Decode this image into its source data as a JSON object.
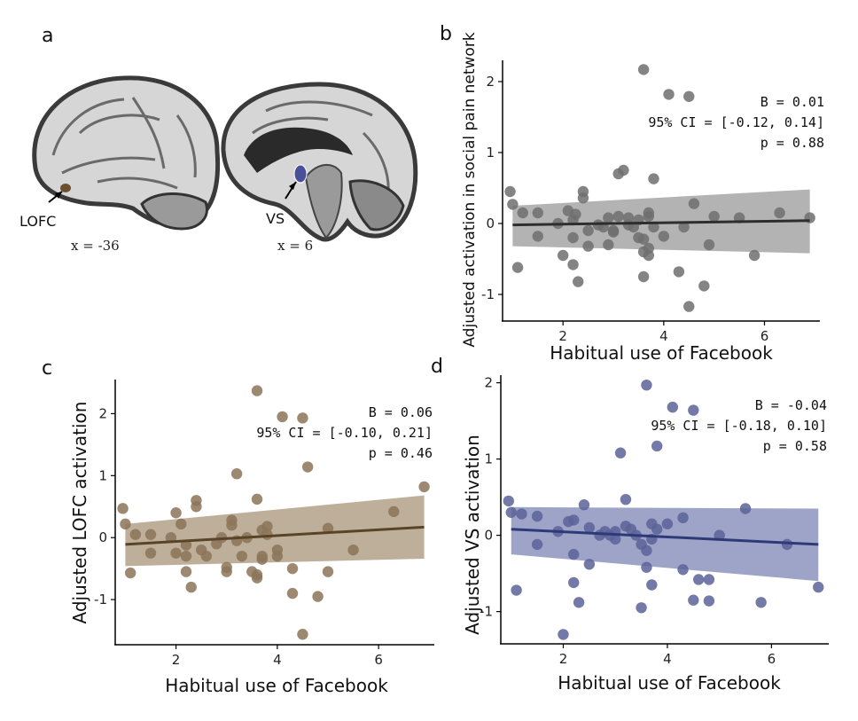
{
  "panels": {
    "a": "a",
    "b": "b",
    "c": "c",
    "d": "d"
  },
  "brain": {
    "left_label": "LOFC",
    "right_label": "VS",
    "left_coord": "x = -36",
    "right_coord": "x = 6",
    "left_roi_color": "#6b4f2e",
    "right_roi_color": "#4a4f9a"
  },
  "chart_data": [
    {
      "id": "b",
      "type": "scatter",
      "xlabel": "Habitual use of Facebook",
      "ylabel": "Adjusted activation in social pain network",
      "xlim": [
        0.8,
        7.1
      ],
      "ylim": [
        -1.35,
        2.3
      ],
      "xticks": [
        2,
        4,
        6
      ],
      "yticks": [
        -1,
        0,
        1,
        2
      ],
      "color": "#6e6e6e",
      "band_color": "#9a9a9a",
      "line_color": "#2e2e2e",
      "annotation": [
        "B = 0.01",
        "95% CI = [-0.12, 0.14]",
        "p = 0.88"
      ],
      "fit": {
        "x": [
          1,
          6.9
        ],
        "y": [
          -0.02,
          0.04
        ]
      },
      "band": {
        "x": [
          1,
          6.9
        ],
        "upper": [
          0.25,
          0.48
        ],
        "lower": [
          -0.32,
          -0.42
        ]
      },
      "points": [
        [
          0.95,
          0.45
        ],
        [
          1.0,
          0.27
        ],
        [
          1.1,
          -0.62
        ],
        [
          1.2,
          0.15
        ],
        [
          1.5,
          0.15
        ],
        [
          1.5,
          -0.18
        ],
        [
          1.9,
          0.0
        ],
        [
          2.0,
          -0.45
        ],
        [
          2.1,
          0.18
        ],
        [
          2.2,
          0.05
        ],
        [
          2.25,
          0.13
        ],
        [
          2.2,
          -0.2
        ],
        [
          2.2,
          -0.58
        ],
        [
          2.3,
          -0.82
        ],
        [
          2.4,
          0.45
        ],
        [
          2.4,
          0.36
        ],
        [
          2.5,
          -0.1
        ],
        [
          2.5,
          -0.32
        ],
        [
          2.8,
          -0.05
        ],
        [
          2.9,
          0.08
        ],
        [
          2.9,
          -0.3
        ],
        [
          3.0,
          -0.12
        ],
        [
          3.1,
          0.7
        ],
        [
          3.2,
          0.75
        ],
        [
          3.1,
          0.1
        ],
        [
          3.3,
          0.08
        ],
        [
          3.3,
          -0.02
        ],
        [
          3.4,
          -0.05
        ],
        [
          3.5,
          0.05
        ],
        [
          3.5,
          -0.2
        ],
        [
          3.6,
          -0.75
        ],
        [
          3.6,
          2.17
        ],
        [
          3.6,
          -0.22
        ],
        [
          3.6,
          -0.4
        ],
        [
          3.7,
          0.1
        ],
        [
          3.7,
          0.15
        ],
        [
          3.7,
          -0.35
        ],
        [
          3.7,
          -0.45
        ],
        [
          3.8,
          0.63
        ],
        [
          3.8,
          -0.05
        ],
        [
          4.0,
          -0.18
        ],
        [
          4.1,
          1.82
        ],
        [
          4.3,
          -0.68
        ],
        [
          4.4,
          -0.05
        ],
        [
          4.5,
          1.79
        ],
        [
          4.5,
          -1.17
        ],
        [
          4.6,
          0.28
        ],
        [
          4.8,
          -0.88
        ],
        [
          4.9,
          -0.3
        ],
        [
          5.0,
          0.1
        ],
        [
          5.5,
          0.08
        ],
        [
          5.8,
          -0.45
        ],
        [
          6.3,
          0.15
        ],
        [
          6.9,
          0.08
        ],
        [
          3.0,
          -0.1
        ],
        [
          2.7,
          -0.02
        ]
      ]
    },
    {
      "id": "c",
      "type": "scatter",
      "xlabel": "Habitual use of Facebook",
      "ylabel": "Adjusted LOFC activation",
      "xlim": [
        0.8,
        7.1
      ],
      "ylim": [
        -1.7,
        2.55
      ],
      "xticks": [
        2,
        4,
        6
      ],
      "yticks": [
        -1,
        0,
        1,
        2
      ],
      "color": "#8c7458",
      "band_color": "#a8947a",
      "line_color": "#5a4428",
      "annotation": [
        "B = 0.06",
        "95% CI = [-0.10, 0.21]",
        "p = 0.46"
      ],
      "fit": {
        "x": [
          1,
          6.9
        ],
        "y": [
          -0.11,
          0.17
        ]
      },
      "band": {
        "x": [
          1,
          6.9
        ],
        "upper": [
          0.22,
          0.68
        ],
        "lower": [
          -0.46,
          -0.34
        ]
      },
      "points": [
        [
          0.95,
          0.47
        ],
        [
          1.0,
          0.22
        ],
        [
          1.1,
          -0.57
        ],
        [
          1.2,
          0.05
        ],
        [
          1.5,
          0.05
        ],
        [
          1.5,
          -0.25
        ],
        [
          1.9,
          0.0
        ],
        [
          2.0,
          0.4
        ],
        [
          2.0,
          -0.25
        ],
        [
          2.1,
          0.22
        ],
        [
          2.2,
          -0.12
        ],
        [
          2.2,
          -0.55
        ],
        [
          2.3,
          -0.8
        ],
        [
          2.4,
          0.6
        ],
        [
          2.4,
          0.5
        ],
        [
          2.5,
          -0.2
        ],
        [
          2.6,
          -0.3
        ],
        [
          2.8,
          -0.1
        ],
        [
          2.9,
          0.0
        ],
        [
          3.0,
          -0.55
        ],
        [
          3.1,
          0.28
        ],
        [
          3.1,
          0.2
        ],
        [
          3.2,
          1.03
        ],
        [
          3.2,
          -0.05
        ],
        [
          3.3,
          -0.3
        ],
        [
          3.4,
          0.0
        ],
        [
          3.5,
          -0.55
        ],
        [
          3.6,
          2.37
        ],
        [
          3.6,
          0.62
        ],
        [
          3.6,
          -0.6
        ],
        [
          3.6,
          -0.65
        ],
        [
          3.7,
          0.12
        ],
        [
          3.7,
          -0.3
        ],
        [
          3.7,
          -0.35
        ],
        [
          3.8,
          0.18
        ],
        [
          3.8,
          0.05
        ],
        [
          4.0,
          -0.2
        ],
        [
          4.1,
          1.95
        ],
        [
          4.3,
          -0.5
        ],
        [
          4.3,
          -0.9
        ],
        [
          4.5,
          1.93
        ],
        [
          4.5,
          -1.56
        ],
        [
          4.6,
          1.14
        ],
        [
          4.8,
          -0.95
        ],
        [
          5.0,
          0.15
        ],
        [
          5.0,
          -0.55
        ],
        [
          5.5,
          -0.2
        ],
        [
          6.3,
          0.42
        ],
        [
          6.9,
          0.82
        ],
        [
          3.0,
          -0.48
        ],
        [
          2.2,
          -0.3
        ],
        [
          4.0,
          -0.3
        ]
      ]
    },
    {
      "id": "d",
      "type": "scatter",
      "xlabel": "Habitual use of Facebook",
      "ylabel": "Adjusted VS activation",
      "xlim": [
        0.8,
        7.1
      ],
      "ylim": [
        -1.4,
        2.1
      ],
      "xticks": [
        2,
        4,
        6
      ],
      "yticks": [
        -1,
        0,
        1,
        2
      ],
      "color": "#5a6399",
      "band_color": "#7d86b4",
      "line_color": "#2e3a78",
      "annotation": [
        "B = -0.04",
        "95% CI = [-0.18, 0.10]",
        "p = 0.58"
      ],
      "fit": {
        "x": [
          1,
          6.9
        ],
        "y": [
          0.08,
          -0.12
        ]
      },
      "band": {
        "x": [
          1,
          6.9
        ],
        "upper": [
          0.37,
          0.35
        ],
        "lower": [
          -0.25,
          -0.6
        ]
      },
      "points": [
        [
          0.95,
          0.45
        ],
        [
          1.0,
          0.3
        ],
        [
          1.1,
          -0.72
        ],
        [
          1.2,
          0.28
        ],
        [
          1.5,
          0.25
        ],
        [
          1.5,
          -0.12
        ],
        [
          1.9,
          0.05
        ],
        [
          2.0,
          -1.3
        ],
        [
          2.1,
          0.18
        ],
        [
          2.2,
          0.2
        ],
        [
          2.2,
          -0.25
        ],
        [
          2.2,
          -0.62
        ],
        [
          2.3,
          -0.88
        ],
        [
          2.4,
          0.4
        ],
        [
          2.5,
          -0.38
        ],
        [
          2.5,
          0.1
        ],
        [
          2.8,
          0.05
        ],
        [
          2.9,
          0.0
        ],
        [
          3.0,
          -0.05
        ],
        [
          3.1,
          1.08
        ],
        [
          3.2,
          0.47
        ],
        [
          3.2,
          0.12
        ],
        [
          3.3,
          0.08
        ],
        [
          3.4,
          0.0
        ],
        [
          3.5,
          -0.12
        ],
        [
          3.5,
          -0.95
        ],
        [
          3.6,
          1.97
        ],
        [
          3.6,
          -0.2
        ],
        [
          3.6,
          -0.42
        ],
        [
          3.7,
          0.15
        ],
        [
          3.7,
          -0.05
        ],
        [
          3.7,
          -0.65
        ],
        [
          3.8,
          1.17
        ],
        [
          3.8,
          0.08
        ],
        [
          4.0,
          0.15
        ],
        [
          4.1,
          1.68
        ],
        [
          4.3,
          0.23
        ],
        [
          4.3,
          -0.45
        ],
        [
          4.5,
          1.64
        ],
        [
          4.5,
          -0.85
        ],
        [
          4.6,
          -0.58
        ],
        [
          4.8,
          -0.58
        ],
        [
          4.8,
          -0.86
        ],
        [
          5.0,
          0.0
        ],
        [
          5.5,
          0.35
        ],
        [
          5.8,
          -0.88
        ],
        [
          6.3,
          -0.12
        ],
        [
          6.9,
          -0.68
        ],
        [
          3.0,
          0.05
        ],
        [
          2.7,
          0.0
        ]
      ]
    }
  ]
}
